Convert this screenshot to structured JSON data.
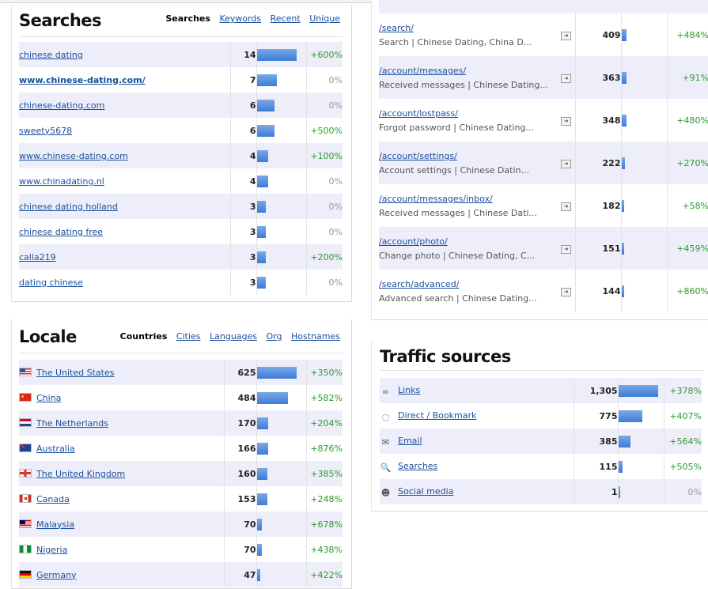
{
  "searches": {
    "title": "Searches",
    "tabs": [
      "Searches",
      "Keywords",
      "Recent",
      "Unique"
    ],
    "rows": [
      {
        "label": "chinese dating",
        "count": "14",
        "bar": 1.0,
        "change": "+600%"
      },
      {
        "label": "www.chinese-dating.com/",
        "count": "7",
        "bar": 0.5,
        "change": "0%"
      },
      {
        "label": "chinese-dating.com",
        "count": "6",
        "bar": 0.43,
        "change": "0%"
      },
      {
        "label": "sweety5678",
        "count": "6",
        "bar": 0.43,
        "change": "+500%"
      },
      {
        "label": "www.chinese-dating.com",
        "count": "4",
        "bar": 0.29,
        "change": "+100%"
      },
      {
        "label": "www.chinadating.nl",
        "count": "4",
        "bar": 0.29,
        "change": "0%"
      },
      {
        "label": "chinese dating holland",
        "count": "3",
        "bar": 0.21,
        "change": "0%"
      },
      {
        "label": "chinese dating free",
        "count": "3",
        "bar": 0.21,
        "change": "0%"
      },
      {
        "label": "calla219",
        "count": "3",
        "bar": 0.21,
        "change": "+200%"
      },
      {
        "label": "dating chinese",
        "count": "3",
        "bar": 0.21,
        "change": "0%"
      }
    ]
  },
  "pages": {
    "rows": [
      {
        "path": "/search/",
        "desc": "Search | Chinese Dating, China D...",
        "count": "409",
        "bar": 0.12,
        "change": "+484%"
      },
      {
        "path": "/account/messages/",
        "desc": "Received messages | Chinese Dating...",
        "count": "363",
        "bar": 0.11,
        "change": "+91%"
      },
      {
        "path": "/account/lostpass/",
        "desc": "Forgot password | Chinese Dating...",
        "count": "348",
        "bar": 0.11,
        "change": "+480%"
      },
      {
        "path": "/account/settings/",
        "desc": "Account settings | Chinese Datin...",
        "count": "222",
        "bar": 0.07,
        "change": "+270%"
      },
      {
        "path": "/account/messages/inbox/",
        "desc": "Received messages | Chinese Dati...",
        "count": "182",
        "bar": 0.06,
        "change": "+58%"
      },
      {
        "path": "/account/photo/",
        "desc": "Change photo | Chinese Dating, C...",
        "count": "151",
        "bar": 0.05,
        "change": "+459%"
      },
      {
        "path": "/search/advanced/",
        "desc": "Advanced search | Chinese Dating...",
        "count": "144",
        "bar": 0.05,
        "change": "+860%"
      }
    ]
  },
  "locale": {
    "title": "Locale",
    "tabs": [
      "Countries",
      "Cities",
      "Languages",
      "Org",
      "Hostnames"
    ],
    "rows": [
      {
        "flag": "f-us",
        "label": "The United States",
        "count": "625",
        "bar": 1.0,
        "change": "+350%"
      },
      {
        "flag": "f-cn",
        "label": "China",
        "count": "484",
        "bar": 0.77,
        "change": "+582%"
      },
      {
        "flag": "f-nl",
        "label": "The Netherlands",
        "count": "170",
        "bar": 0.27,
        "change": "+204%"
      },
      {
        "flag": "f-au",
        "label": "Australia",
        "count": "166",
        "bar": 0.27,
        "change": "+876%"
      },
      {
        "flag": "f-uk",
        "label": "The United Kingdom",
        "count": "160",
        "bar": 0.26,
        "change": "+385%"
      },
      {
        "flag": "f-ca",
        "label": "Canada",
        "count": "153",
        "bar": 0.25,
        "change": "+248%"
      },
      {
        "flag": "f-my",
        "label": "Malaysia",
        "count": "70",
        "bar": 0.11,
        "change": "+678%"
      },
      {
        "flag": "f-ng",
        "label": "Nigeria",
        "count": "70",
        "bar": 0.11,
        "change": "+438%"
      },
      {
        "flag": "f-de",
        "label": "Germany",
        "count": "47",
        "bar": 0.08,
        "change": "+422%"
      }
    ]
  },
  "traffic": {
    "title": "Traffic sources",
    "rows": [
      {
        "icon": "link-icon",
        "glyph": "∞",
        "label": "Links",
        "count": "1,305",
        "bar": 1.0,
        "change": "+378%"
      },
      {
        "icon": "bookmark-icon",
        "glyph": "◌",
        "label": "Direct / Bookmark",
        "count": "775",
        "bar": 0.59,
        "change": "+407%"
      },
      {
        "icon": "email-icon",
        "glyph": "✉",
        "label": "Email",
        "count": "385",
        "bar": 0.3,
        "change": "+564%"
      },
      {
        "icon": "search-icon",
        "glyph": "🔍",
        "label": "Searches",
        "count": "115",
        "bar": 0.09,
        "change": "+505%"
      },
      {
        "icon": "social-media-icon",
        "glyph": "☻",
        "label": "Social media",
        "count": "1",
        "bar": 0.01,
        "change": "0%"
      }
    ]
  }
}
